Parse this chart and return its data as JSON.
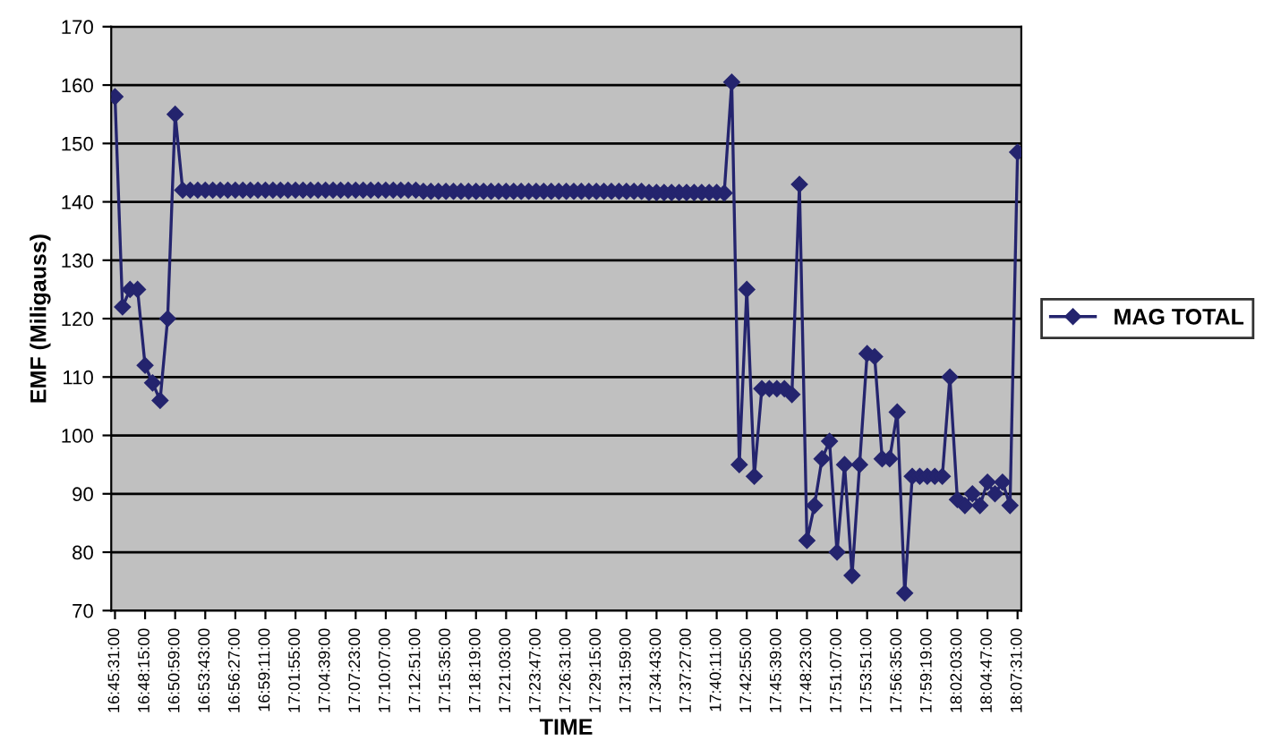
{
  "chart_data": {
    "type": "line",
    "xlabel": "TIME",
    "ylabel": "EMF (Miligauss)",
    "ylim": [
      70,
      170
    ],
    "yticks": [
      70,
      80,
      90,
      100,
      110,
      120,
      130,
      140,
      150,
      160,
      170
    ],
    "categories": [
      "16:45:31:00",
      null,
      null,
      null,
      "16:48:15:00",
      null,
      null,
      null,
      "16:50:59:00",
      null,
      null,
      null,
      "16:53:43:00",
      null,
      null,
      null,
      "16:56:27:00",
      null,
      null,
      null,
      "16:59:11:00",
      null,
      null,
      null,
      "17:01:55:00",
      null,
      null,
      null,
      "17:04:39:00",
      null,
      null,
      null,
      "17:07:23:00",
      null,
      null,
      null,
      "17:10:07:00",
      null,
      null,
      null,
      "17:12:51:00",
      null,
      null,
      null,
      "17:15:35:00",
      null,
      null,
      null,
      "17:18:19:00",
      null,
      null,
      null,
      "17:21:03:00",
      null,
      null,
      null,
      "17:23:47:00",
      null,
      null,
      null,
      "17:26:31:00",
      null,
      null,
      null,
      "17:29:15:00",
      null,
      null,
      null,
      "17:31:59:00",
      null,
      null,
      null,
      "17:34:43:00",
      null,
      null,
      null,
      "17:37:27:00",
      null,
      null,
      null,
      "17:40:11:00",
      null,
      null,
      null,
      "17:42:55:00",
      null,
      null,
      null,
      "17:45:39:00",
      null,
      null,
      null,
      "17:48:23:00",
      null,
      null,
      null,
      "17:51:07:00",
      null,
      null,
      null,
      "17:53:51:00",
      null,
      null,
      null,
      "17:56:35:00",
      null,
      null,
      null,
      "17:59:19:00",
      null,
      null,
      null,
      "18:02:03:00",
      null,
      null,
      null,
      "18:04:47:00",
      null,
      null,
      null,
      "18:07:31:00"
    ],
    "grid": "y",
    "legend": "right",
    "marker": "diamond",
    "line_style": "solid",
    "series": [
      {
        "name": "MAG TOTAL",
        "color": "#24246e",
        "values": [
          158,
          122,
          125,
          125,
          112,
          109,
          106,
          120,
          155,
          142,
          142,
          142,
          142,
          142,
          142,
          142,
          142,
          142,
          142,
          142,
          142,
          142,
          142,
          142,
          142,
          142,
          142,
          142,
          142,
          142,
          142,
          142,
          142,
          142,
          142,
          142,
          142,
          142,
          142,
          142,
          142,
          141.8,
          141.8,
          141.8,
          141.8,
          141.8,
          141.8,
          141.8,
          141.8,
          141.8,
          141.8,
          141.8,
          141.8,
          141.8,
          141.8,
          141.8,
          141.8,
          141.8,
          141.8,
          141.8,
          141.8,
          141.8,
          141.8,
          141.8,
          141.8,
          141.8,
          141.8,
          141.8,
          141.8,
          141.8,
          141.8,
          141.6,
          141.6,
          141.6,
          141.6,
          141.6,
          141.6,
          141.6,
          141.6,
          141.6,
          141.6,
          141.5,
          160.5,
          95,
          125,
          93,
          108,
          108,
          108,
          108,
          107,
          143,
          82,
          88,
          96,
          99,
          80,
          95,
          76,
          95,
          114,
          113.5,
          96,
          96,
          104,
          73,
          93,
          93,
          93,
          93,
          93,
          110,
          89,
          88,
          90,
          88,
          92,
          90,
          92,
          88,
          148.5
        ]
      }
    ]
  }
}
